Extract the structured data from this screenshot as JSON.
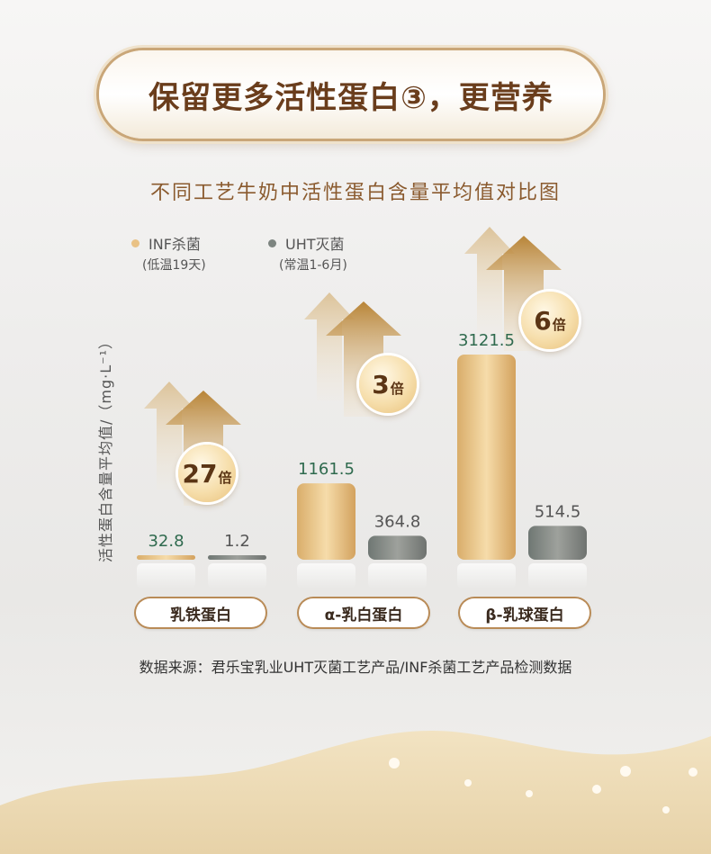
{
  "header": {
    "title": "保留更多活性蛋白③，更营养"
  },
  "chart_data": {
    "type": "bar",
    "title": "不同工艺牛奶中活性蛋白含量平均值对比图",
    "ylabel": "活性蛋白含量平均值/（mg·L⁻¹）",
    "categories": [
      "乳铁蛋白",
      "α-乳白蛋白",
      "β-乳球蛋白"
    ],
    "series": [
      {
        "name": "INF杀菌",
        "note": "(低温19天)",
        "values": [
          32.8,
          1161.5,
          3121.5
        ],
        "value_labels": [
          "32.8",
          "1161.5",
          "3121.5"
        ],
        "color": "#e9c285"
      },
      {
        "name": "UHT灭菌",
        "note": "(常温1-6月)",
        "values": [
          1.2,
          364.8,
          514.5
        ],
        "value_labels": [
          "1.2",
          "364.8",
          "514.5"
        ],
        "color": "#8a8d89"
      }
    ],
    "multipliers": [
      {
        "num": "27",
        "unit": "倍"
      },
      {
        "num": "3",
        "unit": "倍"
      },
      {
        "num": "6",
        "unit": "倍"
      }
    ],
    "legend": "top-left"
  },
  "footer": {
    "source": "数据来源：君乐宝乳业UHT灭菌工艺产品/INF杀菌工艺产品检测数据"
  },
  "colors": {
    "accent": "#8a5a2e",
    "inf_label": "#2f6a4e",
    "uht_label": "#555555"
  }
}
